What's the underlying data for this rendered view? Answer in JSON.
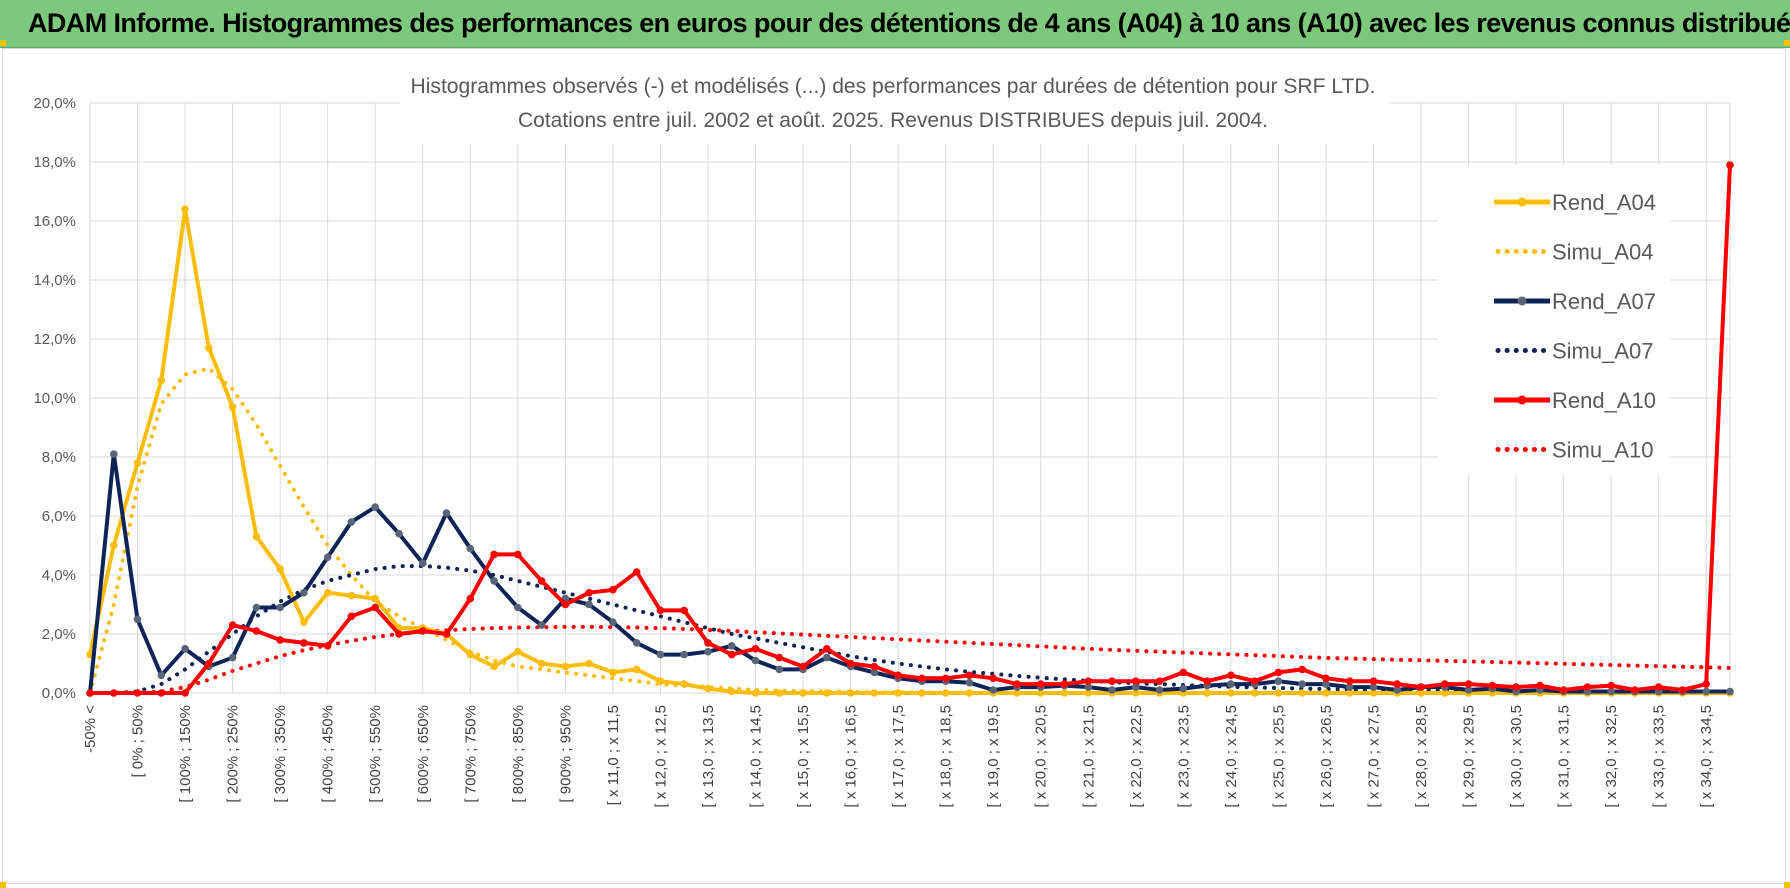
{
  "banner": {
    "title": "ADAM Informe. Histogrammes des performances en euros pour des détentions de 4 ans (A04) à 10 ans (A10) avec les revenus connus distribués"
  },
  "colors": {
    "banner_bg": "#7dc97b",
    "A04": "#fbbd0b",
    "A07": "#0c2457",
    "A10": "#ff0000",
    "grid": "#d9d9d9"
  },
  "chart_data": {
    "type": "line",
    "title": "Histogrammes observés (-) et modélisés (...) des performances par durées de détention pour SRF LTD.",
    "subtitle": "Cotations entre juil. 2002 et août. 2025. Revenus DISTRIBUES depuis juil. 2004.",
    "ylim": [
      0,
      20
    ],
    "yticks": [
      "0,0%",
      "2,0%",
      "4,0%",
      "6,0%",
      "8,0%",
      "10,0%",
      "12,0%",
      "14,0%",
      "16,0%",
      "18,0%",
      "20,0%"
    ],
    "grid": true,
    "legend_position": "right",
    "x_tick_labels": [
      "-50% <",
      "[ 0% ; 50%",
      "[ 100% ; 150%",
      "[ 200% ; 250%",
      "[ 300% ; 350%",
      "[ 400% ; 450%",
      "[ 500% ; 550%",
      "[ 600% ; 650%",
      "[ 700% ; 750%",
      "[ 800% ; 850%",
      "[ 900% ; 950%",
      "[ x 11,0 ; x 11,5",
      "[ x 12,0 ; x 12,5",
      "[ x 13,0 ; x 13,5",
      "[ x 14,0 ; x 14,5",
      "[ x 15,0 ; x 15,5",
      "[ x 16,0 ; x 16,5",
      "[ x 17,0 ; x 17,5",
      "[ x 18,0 ; x 18,5",
      "[ x 19,0 ; x 19,5",
      "[ x 20,0 ; x 20,5",
      "[ x 21,0 ; x 21,5",
      "[ x 22,0 ; x 22,5",
      "[ x 23,0 ; x 23,5",
      "[ x 24,0 ; x 24,5",
      "[ x 25,0 ; x 25,5",
      "[ x 26,0 ; x 26,5",
      "[ x 27,0 ; x 27,5",
      "[ x 28,0 ; x 28,5",
      "[ x 29,0 ; x 29,5",
      "[ x 30,0 ; x 30,5",
      "[ x 31,0 ; x 31,5",
      "[ x 32,0 ; x 32,5",
      "[ x 33,0 ; x 33,5",
      "[ x 34,0 ; x 34,5"
    ],
    "series": [
      {
        "name": "Rend_A04",
        "style": "solid",
        "color": "#fbbd0b",
        "values": [
          1.3,
          5.0,
          7.8,
          10.6,
          16.4,
          11.7,
          9.7,
          5.3,
          4.2,
          2.4,
          3.4,
          3.3,
          3.2,
          2.2,
          2.2,
          2.0,
          1.3,
          0.9,
          1.4,
          1.0,
          0.9,
          1.0,
          0.7,
          0.8,
          0.4,
          0.3,
          0.15,
          0.05,
          0,
          0,
          0,
          0,
          0,
          0,
          0,
          0,
          0,
          0,
          0,
          0,
          0,
          0,
          0,
          0,
          0,
          0,
          0,
          0,
          0,
          0,
          0,
          0,
          0,
          0,
          0,
          0,
          0,
          0,
          0,
          0,
          0,
          0,
          0,
          0,
          0,
          0,
          0,
          0,
          0,
          0
        ]
      },
      {
        "name": "Simu_A04",
        "style": "dotted",
        "color": "#fbbd0b",
        "values": [
          0.0,
          3.0,
          7.0,
          9.8,
          10.8,
          11.0,
          10.3,
          9.1,
          7.7,
          6.3,
          5.0,
          4.0,
          3.1,
          2.6,
          2.2,
          1.8,
          1.4,
          1.1,
          0.9,
          0.8,
          0.7,
          0.6,
          0.5,
          0.4,
          0.3,
          0.25,
          0.2,
          0.15,
          0.1,
          0.08,
          0.06,
          0.05,
          0.04,
          0.03,
          0.02,
          0.02,
          0.01,
          0.01,
          0,
          0,
          0,
          0,
          0,
          0,
          0,
          0,
          0,
          0,
          0,
          0,
          0,
          0,
          0,
          0,
          0,
          0,
          0,
          0,
          0,
          0,
          0,
          0,
          0,
          0,
          0,
          0,
          0,
          0,
          0,
          0
        ]
      },
      {
        "name": "Rend_A07",
        "style": "solid",
        "color": "#0c2457",
        "values": [
          0.0,
          8.1,
          2.5,
          0.6,
          1.5,
          0.9,
          1.2,
          2.9,
          2.9,
          3.4,
          4.6,
          5.8,
          6.3,
          5.4,
          4.4,
          6.1,
          4.9,
          3.8,
          2.9,
          2.3,
          3.2,
          3.0,
          2.4,
          1.7,
          1.3,
          1.3,
          1.4,
          1.6,
          1.1,
          0.8,
          0.8,
          1.2,
          0.9,
          0.7,
          0.5,
          0.4,
          0.4,
          0.35,
          0.1,
          0.2,
          0.2,
          0.25,
          0.2,
          0.1,
          0.2,
          0.1,
          0.15,
          0.25,
          0.3,
          0.3,
          0.4,
          0.3,
          0.3,
          0.2,
          0.2,
          0.1,
          0.2,
          0.2,
          0.1,
          0.15,
          0.05,
          0.1,
          0.05,
          0.05,
          0.05,
          0.05,
          0.05,
          0.05,
          0.05,
          0.05
        ]
      },
      {
        "name": "Simu_A07",
        "style": "dotted",
        "color": "#0c2457",
        "values": [
          0.0,
          0.0,
          0.05,
          0.3,
          0.8,
          1.4,
          2.0,
          2.6,
          3.1,
          3.5,
          3.8,
          4.0,
          4.2,
          4.3,
          4.3,
          4.25,
          4.15,
          4.0,
          3.8,
          3.6,
          3.4,
          3.2,
          3.0,
          2.8,
          2.6,
          2.4,
          2.2,
          2.0,
          1.85,
          1.7,
          1.55,
          1.4,
          1.25,
          1.12,
          1.0,
          0.9,
          0.8,
          0.72,
          0.65,
          0.58,
          0.52,
          0.46,
          0.41,
          0.37,
          0.33,
          0.3,
          0.27,
          0.24,
          0.21,
          0.19,
          0.17,
          0.15,
          0.14,
          0.12,
          0.11,
          0.1,
          0.09,
          0.08,
          0.07,
          0.06,
          0.05,
          0.05,
          0.04,
          0.04,
          0.03,
          0.03,
          0.03,
          0.02,
          0.02,
          0.02
        ]
      },
      {
        "name": "Rend_A10",
        "style": "solid",
        "color": "#ff0000",
        "values": [
          0.0,
          0.0,
          0.0,
          0.0,
          0.0,
          1.0,
          2.3,
          2.1,
          1.8,
          1.7,
          1.6,
          2.6,
          2.9,
          2.0,
          2.1,
          2.0,
          3.2,
          4.7,
          4.7,
          3.8,
          3.0,
          3.4,
          3.5,
          4.1,
          2.8,
          2.8,
          1.7,
          1.3,
          1.5,
          1.2,
          0.9,
          1.5,
          1.0,
          0.9,
          0.6,
          0.5,
          0.5,
          0.6,
          0.5,
          0.3,
          0.3,
          0.3,
          0.4,
          0.4,
          0.4,
          0.4,
          0.7,
          0.4,
          0.6,
          0.4,
          0.7,
          0.8,
          0.5,
          0.4,
          0.4,
          0.3,
          0.2,
          0.3,
          0.3,
          0.25,
          0.2,
          0.25,
          0.1,
          0.2,
          0.25,
          0.1,
          0.2,
          0.1,
          0.3,
          17.9
        ]
      },
      {
        "name": "Simu_A10",
        "style": "dotted",
        "color": "#ff0000",
        "values": [
          0.0,
          0.0,
          0.0,
          0.05,
          0.2,
          0.45,
          0.75,
          1.0,
          1.25,
          1.45,
          1.62,
          1.77,
          1.9,
          2.0,
          2.08,
          2.13,
          2.17,
          2.2,
          2.22,
          2.23,
          2.24,
          2.24,
          2.23,
          2.22,
          2.2,
          2.17,
          2.14,
          2.1,
          2.06,
          2.02,
          1.98,
          1.94,
          1.9,
          1.86,
          1.82,
          1.78,
          1.74,
          1.7,
          1.66,
          1.62,
          1.58,
          1.54,
          1.5,
          1.46,
          1.43,
          1.4,
          1.37,
          1.34,
          1.31,
          1.28,
          1.25,
          1.22,
          1.19,
          1.17,
          1.15,
          1.13,
          1.11,
          1.09,
          1.07,
          1.05,
          1.03,
          1.01,
          0.99,
          0.97,
          0.95,
          0.93,
          0.91,
          0.89,
          0.87,
          0.85
        ]
      }
    ]
  }
}
